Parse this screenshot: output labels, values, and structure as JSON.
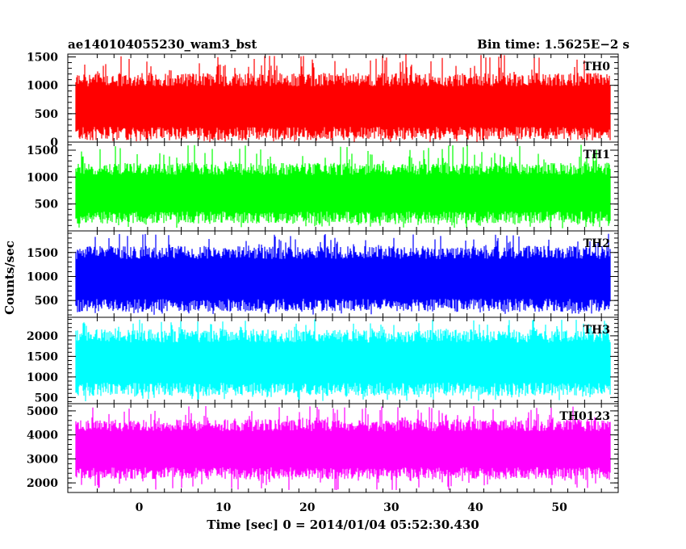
{
  "header": {
    "title": "ae140104055230_wam3_bst",
    "bin_time": "Bin time: 1.5625E−2 s"
  },
  "chart_data": {
    "type": "line",
    "title": "ae140104055230_wam3_bst",
    "subtitle": "Bin time: 1.5625E−2 s",
    "xlabel": "Time [sec] 0 = 2014/01/04 05:52:30.430",
    "ylabel": "Counts/sec",
    "xlim": [
      -8.5,
      57
    ],
    "data_x_range": [
      -7.5,
      56
    ],
    "x_ticks": [
      0,
      10,
      20,
      30,
      40,
      50
    ],
    "grid": false,
    "series": [
      {
        "name": "TH0",
        "color": "#ff0000",
        "ylim": [
          0,
          1550
        ],
        "y_ticks": [
          0,
          500,
          1000,
          1500
        ],
        "typical_range": [
          150,
          1100
        ],
        "peak_range": [
          0,
          1550
        ]
      },
      {
        "name": "TH1",
        "color": "#00ff00",
        "ylim": [
          0,
          1650
        ],
        "y_ticks": [
          500,
          1000,
          1500
        ],
        "typical_range": [
          250,
          1150
        ],
        "peak_range": [
          50,
          1600
        ]
      },
      {
        "name": "TH2",
        "color": "#0000ff",
        "ylim": [
          150,
          1950
        ],
        "y_ticks": [
          500,
          1000,
          1500
        ],
        "typical_range": [
          400,
          1500
        ],
        "peak_range": [
          200,
          1900
        ]
      },
      {
        "name": "TH3",
        "color": "#00ffff",
        "ylim": [
          350,
          2450
        ],
        "y_ticks": [
          500,
          1000,
          1500,
          2000
        ],
        "typical_range": [
          700,
          2000
        ],
        "peak_range": [
          400,
          2400
        ]
      },
      {
        "name": "TH0123",
        "color": "#ff00ff",
        "ylim": [
          1600,
          5300
        ],
        "y_ticks": [
          2000,
          3000,
          4000,
          5000
        ],
        "typical_range": [
          2400,
          4400
        ],
        "peak_range": [
          1700,
          5200
        ]
      }
    ]
  }
}
